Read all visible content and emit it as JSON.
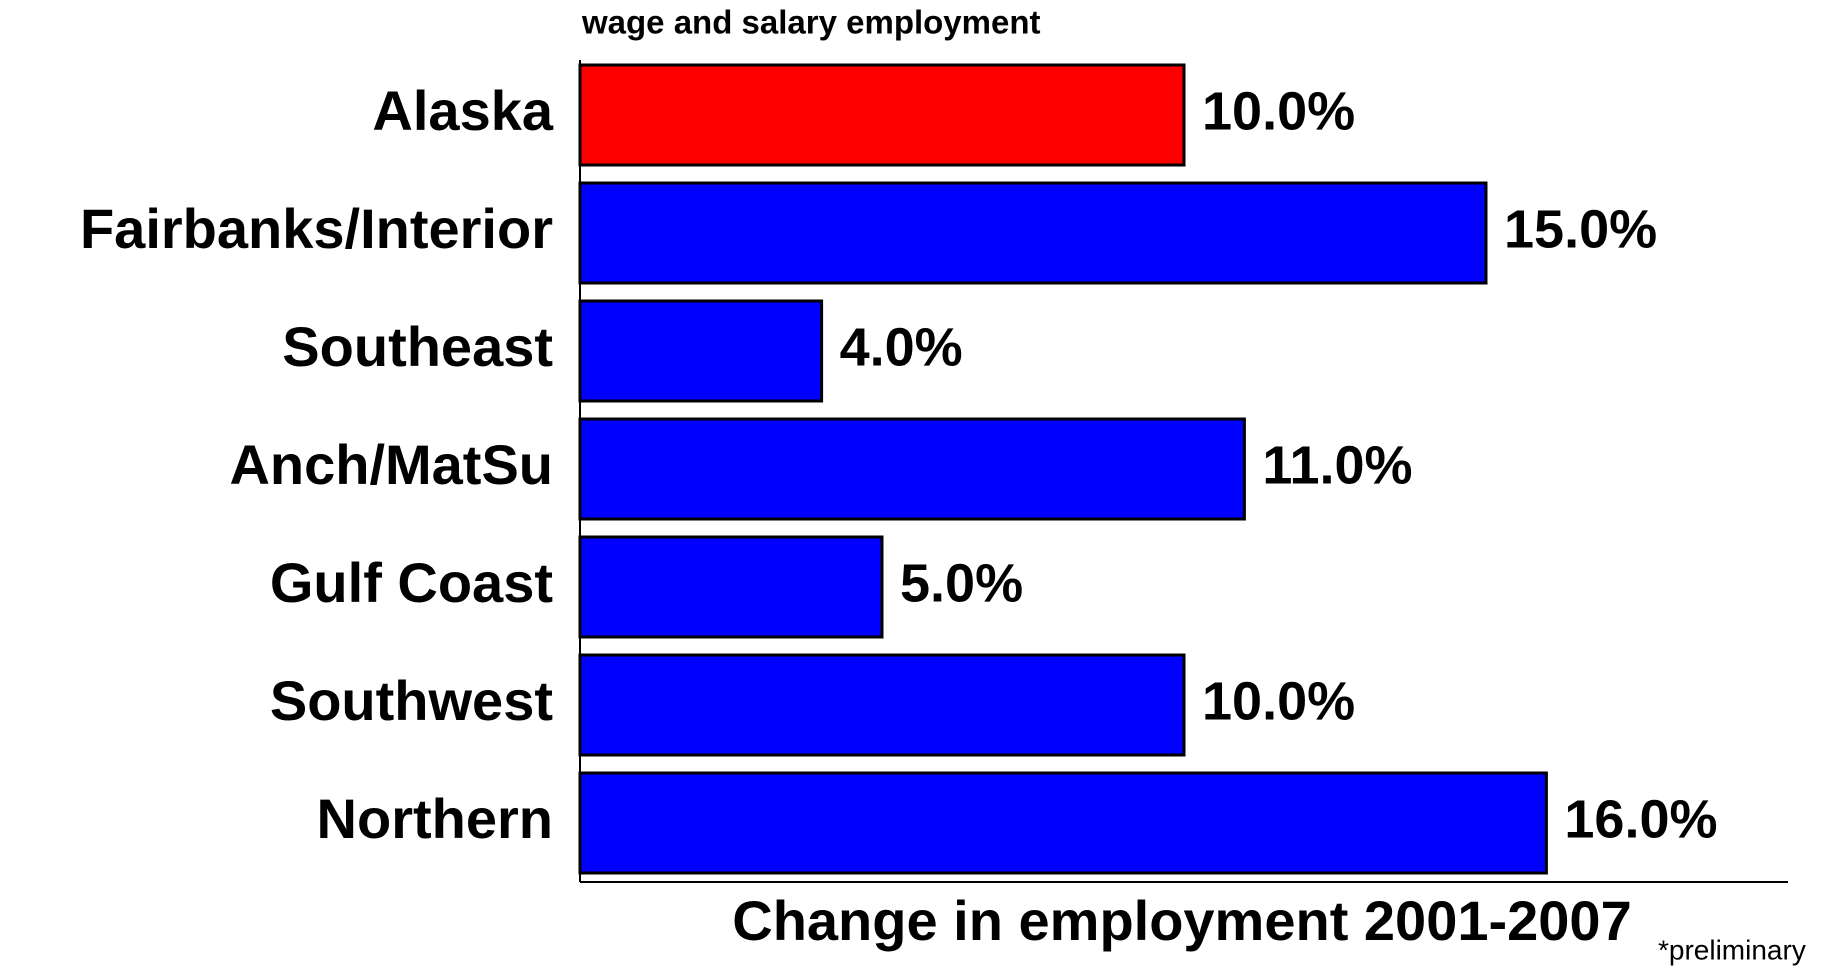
{
  "chart_data": {
    "type": "hbar",
    "subtitle": "wage and salary employment",
    "x_label": "Change in employment 2001-2007",
    "annotation": "*preliminary",
    "categories": [
      "Alaska",
      "Fairbanks/Interior",
      "Southeast",
      "Anch/MatSu",
      "Gulf Coast",
      "Southwest",
      "Northern"
    ],
    "values": [
      10,
      15,
      4,
      11,
      5,
      10,
      16
    ],
    "value_labels": [
      "10.0%",
      "15.0%",
      "4.0%",
      "11.0%",
      "5.0%",
      "10.0%",
      "16.0%"
    ],
    "colors": [
      "#ff0000",
      "#0000ff",
      "#0000ff",
      "#0000ff",
      "#0000ff",
      "#0000ff",
      "#0000ff"
    ],
    "value_label_colors": [
      "#000000",
      "#000000",
      "#000000",
      "#000000",
      "#000000",
      "#3a0a0a",
      "#000000"
    ],
    "xlim": [
      0,
      20
    ]
  }
}
